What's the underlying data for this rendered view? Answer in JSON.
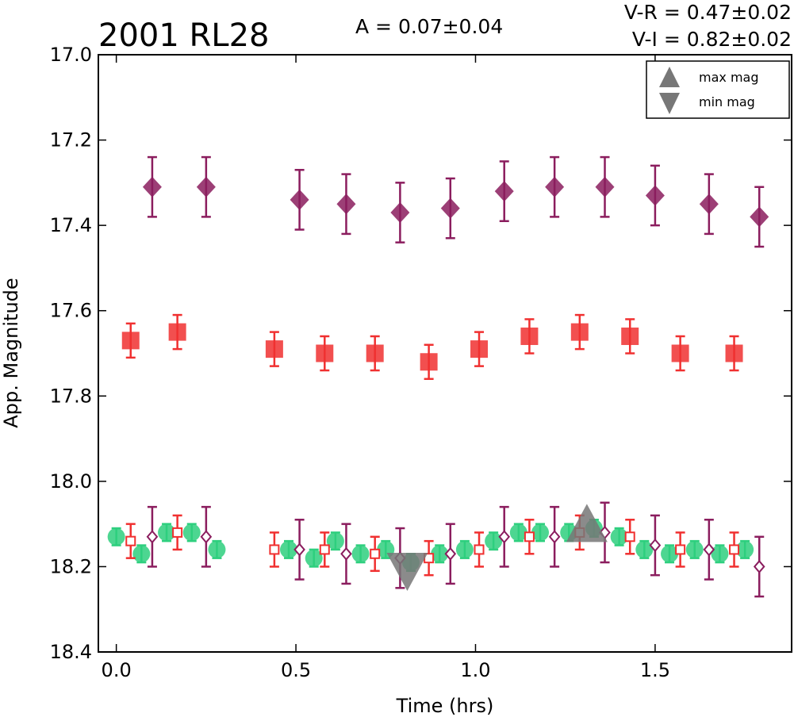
{
  "chart_data": {
    "type": "scatter",
    "title": "2001 RL28",
    "annotations": {
      "amplitude": "A  = 0.07±0.04",
      "v_r": "V-R = 0.47±0.02",
      "v_i": "V-I  = 0.82±0.02"
    },
    "xlabel": "Time (hrs)",
    "ylabel": "App. Magnitude",
    "xlim": [
      -0.05,
      1.88
    ],
    "ylim": [
      18.4,
      17.0
    ],
    "y_inverted": true,
    "grid": false,
    "x_ticks": [
      {
        "value": 0.0,
        "label": "0.0"
      },
      {
        "value": 0.5,
        "label": "0.5"
      },
      {
        "value": 1.0,
        "label": "1.0"
      },
      {
        "value": 1.5,
        "label": "1.5"
      }
    ],
    "y_ticks": [
      {
        "value": 17.0,
        "label": "17.0"
      },
      {
        "value": 17.2,
        "label": "17.2"
      },
      {
        "value": 17.4,
        "label": "17.4"
      },
      {
        "value": 17.6,
        "label": "17.6"
      },
      {
        "value": 17.8,
        "label": "17.8"
      },
      {
        "value": 18.0,
        "label": "18.0"
      },
      {
        "value": 18.2,
        "label": "18.2"
      },
      {
        "value": 18.4,
        "label": "18.4"
      }
    ],
    "legend": {
      "position": "top-right",
      "entries": [
        {
          "label": "max mag",
          "marker": "triangle-up",
          "color": "#777777"
        },
        {
          "label": "min mag",
          "marker": "triangle-down",
          "color": "#777777"
        }
      ]
    },
    "series": [
      {
        "marker": "diamond-filled",
        "color": "#8b1d5e",
        "points": [
          {
            "x": 0.1,
            "y": 17.31,
            "err": 0.07
          },
          {
            "x": 0.25,
            "y": 17.31,
            "err": 0.07
          },
          {
            "x": 0.51,
            "y": 17.34,
            "err": 0.07
          },
          {
            "x": 0.64,
            "y": 17.35,
            "err": 0.07
          },
          {
            "x": 0.79,
            "y": 17.37,
            "err": 0.07
          },
          {
            "x": 0.93,
            "y": 17.36,
            "err": 0.07
          },
          {
            "x": 1.08,
            "y": 17.32,
            "err": 0.07
          },
          {
            "x": 1.22,
            "y": 17.31,
            "err": 0.07
          },
          {
            "x": 1.36,
            "y": 17.31,
            "err": 0.07
          },
          {
            "x": 1.5,
            "y": 17.33,
            "err": 0.07
          },
          {
            "x": 1.65,
            "y": 17.35,
            "err": 0.07
          },
          {
            "x": 1.79,
            "y": 17.38,
            "err": 0.07
          }
        ]
      },
      {
        "marker": "square-filled",
        "color": "#f03030",
        "points": [
          {
            "x": 0.04,
            "y": 17.67,
            "err": 0.04
          },
          {
            "x": 0.17,
            "y": 17.65,
            "err": 0.04
          },
          {
            "x": 0.44,
            "y": 17.69,
            "err": 0.04
          },
          {
            "x": 0.58,
            "y": 17.7,
            "err": 0.04
          },
          {
            "x": 0.72,
            "y": 17.7,
            "err": 0.04
          },
          {
            "x": 0.87,
            "y": 17.72,
            "err": 0.04
          },
          {
            "x": 1.01,
            "y": 17.69,
            "err": 0.04
          },
          {
            "x": 1.15,
            "y": 17.66,
            "err": 0.04
          },
          {
            "x": 1.29,
            "y": 17.65,
            "err": 0.04
          },
          {
            "x": 1.43,
            "y": 17.66,
            "err": 0.04
          },
          {
            "x": 1.57,
            "y": 17.7,
            "err": 0.04
          },
          {
            "x": 1.72,
            "y": 17.7,
            "err": 0.04
          }
        ]
      },
      {
        "marker": "circle-filled",
        "color": "#2ecf7e",
        "points": [
          {
            "x": 0.0,
            "y": 18.13,
            "err": 0.02
          },
          {
            "x": 0.07,
            "y": 18.17,
            "err": 0.02
          },
          {
            "x": 0.14,
            "y": 18.12,
            "err": 0.02
          },
          {
            "x": 0.21,
            "y": 18.12,
            "err": 0.02
          },
          {
            "x": 0.28,
            "y": 18.16,
            "err": 0.02
          },
          {
            "x": 0.48,
            "y": 18.16,
            "err": 0.02
          },
          {
            "x": 0.55,
            "y": 18.18,
            "err": 0.02
          },
          {
            "x": 0.61,
            "y": 18.14,
            "err": 0.02
          },
          {
            "x": 0.68,
            "y": 18.17,
            "err": 0.02
          },
          {
            "x": 0.75,
            "y": 18.16,
            "err": 0.02
          },
          {
            "x": 0.82,
            "y": 18.19,
            "err": 0.02
          },
          {
            "x": 0.9,
            "y": 18.17,
            "err": 0.02
          },
          {
            "x": 0.97,
            "y": 18.16,
            "err": 0.02
          },
          {
            "x": 1.05,
            "y": 18.14,
            "err": 0.02
          },
          {
            "x": 1.12,
            "y": 18.12,
            "err": 0.02
          },
          {
            "x": 1.18,
            "y": 18.12,
            "err": 0.02
          },
          {
            "x": 1.26,
            "y": 18.12,
            "err": 0.02
          },
          {
            "x": 1.33,
            "y": 18.11,
            "err": 0.02
          },
          {
            "x": 1.4,
            "y": 18.13,
            "err": 0.02
          },
          {
            "x": 1.47,
            "y": 18.16,
            "err": 0.02
          },
          {
            "x": 1.54,
            "y": 18.17,
            "err": 0.02
          },
          {
            "x": 1.61,
            "y": 18.16,
            "err": 0.02
          },
          {
            "x": 1.68,
            "y": 18.17,
            "err": 0.02
          },
          {
            "x": 1.75,
            "y": 18.16,
            "err": 0.02
          }
        ]
      },
      {
        "marker": "square-open",
        "color": "#f03030",
        "points": [
          {
            "x": 0.04,
            "y": 18.14,
            "err": 0.04
          },
          {
            "x": 0.17,
            "y": 18.12,
            "err": 0.04
          },
          {
            "x": 0.44,
            "y": 18.16,
            "err": 0.04
          },
          {
            "x": 0.58,
            "y": 18.16,
            "err": 0.04
          },
          {
            "x": 0.72,
            "y": 18.17,
            "err": 0.04
          },
          {
            "x": 0.87,
            "y": 18.18,
            "err": 0.04
          },
          {
            "x": 1.01,
            "y": 18.16,
            "err": 0.04
          },
          {
            "x": 1.15,
            "y": 18.13,
            "err": 0.04
          },
          {
            "x": 1.29,
            "y": 18.12,
            "err": 0.04
          },
          {
            "x": 1.43,
            "y": 18.13,
            "err": 0.04
          },
          {
            "x": 1.57,
            "y": 18.16,
            "err": 0.04
          },
          {
            "x": 1.72,
            "y": 18.16,
            "err": 0.04
          }
        ]
      },
      {
        "marker": "diamond-open",
        "color": "#8b1d5e",
        "points": [
          {
            "x": 0.1,
            "y": 18.13,
            "err": 0.07
          },
          {
            "x": 0.25,
            "y": 18.13,
            "err": 0.07
          },
          {
            "x": 0.51,
            "y": 18.16,
            "err": 0.07
          },
          {
            "x": 0.64,
            "y": 18.17,
            "err": 0.07
          },
          {
            "x": 0.79,
            "y": 18.18,
            "err": 0.07
          },
          {
            "x": 0.93,
            "y": 18.17,
            "err": 0.07
          },
          {
            "x": 1.08,
            "y": 18.13,
            "err": 0.07
          },
          {
            "x": 1.22,
            "y": 18.13,
            "err": 0.07
          },
          {
            "x": 1.36,
            "y": 18.12,
            "err": 0.07
          },
          {
            "x": 1.5,
            "y": 18.15,
            "err": 0.07
          },
          {
            "x": 1.65,
            "y": 18.16,
            "err": 0.07
          },
          {
            "x": 1.79,
            "y": 18.2,
            "err": 0.07
          }
        ]
      },
      {
        "marker": "triangle-up",
        "color": "#777777",
        "legend": "max mag",
        "points": [
          {
            "x": 1.31,
            "y": 18.12
          }
        ]
      },
      {
        "marker": "triangle-down",
        "color": "#777777",
        "legend": "min mag",
        "points": [
          {
            "x": 0.81,
            "y": 18.19
          }
        ]
      }
    ]
  }
}
